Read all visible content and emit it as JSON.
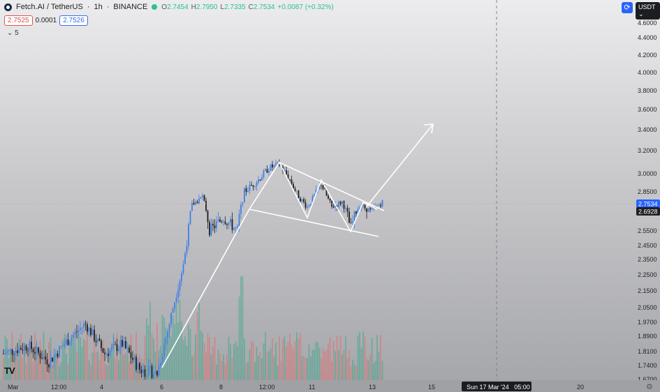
{
  "header": {
    "symbol": "Fetch.AI / TetherUS",
    "interval": "1h",
    "exchange": "BINANCE",
    "sep": "·",
    "open_label": "O",
    "open": "2.7454",
    "high_label": "H",
    "high": "2.7950",
    "low_label": "L",
    "low": "2.7335",
    "close_label": "C",
    "close": "2.7534",
    "change": "+0.0087 (+0.32%)"
  },
  "order_row": {
    "sell": "2.7525",
    "spread": "0.0001",
    "buy": "2.7526"
  },
  "indicators_toggle": {
    "icon": "chevron-down-icon",
    "count": "5"
  },
  "toolbar": {
    "currency": "USDT"
  },
  "price_axis": {
    "ticks": [
      "4.6000",
      "4.4000",
      "4.2000",
      "4.0000",
      "3.8000",
      "3.6000",
      "3.4000",
      "3.2000",
      "3.0000",
      "2.8500",
      "2.6500",
      "2.5500",
      "2.4500",
      "2.3500",
      "2.2500",
      "2.1500",
      "2.0500",
      "1.9700",
      "1.8900",
      "1.8100",
      "1.7400",
      "1.6700"
    ],
    "current_price": "2.7534",
    "crosshair_price": "2.6928"
  },
  "time_axis": {
    "ticks": [
      "Mar",
      "12:00",
      "4",
      "6",
      "8",
      "12:00",
      "11",
      "13",
      "15",
      "20"
    ],
    "crosshair_label": "Sun 17 Mar '24   05:00"
  },
  "colors": {
    "up": "#3e7fe6",
    "down": "#1e1e1e",
    "vol_up": "#3aa68c",
    "vol_down": "#e36b6b",
    "accent": "#2962ff"
  },
  "chart_data": {
    "type": "candlestick",
    "symbol": "FETUSDT",
    "interval": "1h",
    "close_path": [
      [
        "Mar 2",
        1.82
      ],
      [
        "Mar 3",
        1.85
      ],
      [
        "Mar 4",
        1.95
      ],
      [
        "Mar 5",
        1.78
      ],
      [
        "Mar 5 12:00",
        1.7
      ],
      [
        "Mar 6",
        1.72
      ],
      [
        "Mar 6 12:00",
        2.1
      ],
      [
        "Mar 7",
        2.75
      ],
      [
        "Mar 7 12:00",
        2.58
      ],
      [
        "Mar 8",
        2.62
      ],
      [
        "Mar 8 12:00",
        2.55
      ],
      [
        "Mar 9",
        2.85
      ],
      [
        "Mar 9 12:00",
        3.0
      ],
      [
        "Mar 10",
        3.08
      ],
      [
        "Mar 10 12:00",
        2.92
      ],
      [
        "Mar 11",
        2.75
      ],
      [
        "Mar 11 12:00",
        2.9
      ],
      [
        "Mar 12",
        2.7
      ],
      [
        "Mar 12 12:00",
        2.58
      ],
      [
        "Mar 13",
        2.7
      ],
      [
        "Mar 13 06:00",
        2.7534
      ]
    ],
    "drawings": [
      {
        "name": "impulse-trendline",
        "from": [
          "Mar 6",
          1.7
        ],
        "to": [
          "Mar 9",
          2.68
        ]
      },
      {
        "name": "flag-upper-line",
        "from": [
          "Mar 10",
          3.12
        ],
        "to": [
          "Mar 13",
          2.7
        ]
      },
      {
        "name": "flag-lower-line",
        "from": [
          "Mar 9",
          2.68
        ],
        "to": [
          "Mar 13 06:00",
          2.52
        ]
      },
      {
        "name": "breakout-arrow",
        "from": [
          "Mar 13",
          2.78
        ],
        "to": [
          "Mar 14 12:00",
          3.45
        ]
      }
    ]
  }
}
